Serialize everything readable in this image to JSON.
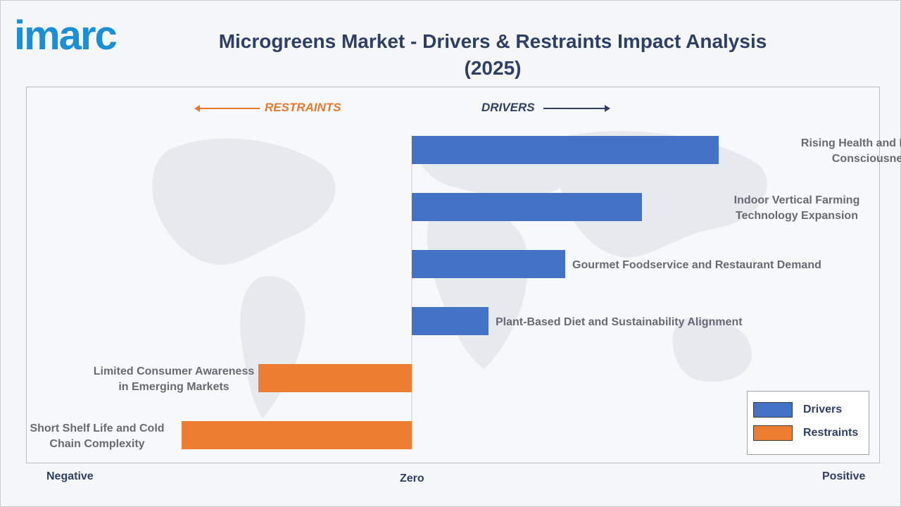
{
  "brand": {
    "logo_text": "imarc"
  },
  "title": "Microgreens Market - Drivers & Restraints Impact Analysis (2025)",
  "direction_labels": {
    "restraints": "RESTRAINTS",
    "drivers": "DRIVERS"
  },
  "axis_labels": {
    "negative": "Negative",
    "zero": "Zero",
    "positive": "Positive"
  },
  "colors": {
    "drivers": "#4472c4",
    "restraints": "#ed7d31",
    "title": "#2e3f66",
    "logo": "#1a8fd6"
  },
  "legend": [
    {
      "label": "Drivers",
      "color": "#4472c4"
    },
    {
      "label": "Restraints",
      "color": "#ed7d31"
    }
  ],
  "chart_data": {
    "type": "bar",
    "orientation": "horizontal",
    "xlim": [
      -1,
      1
    ],
    "categories": [
      "Rising Health and Nutrition Consciousness",
      "Indoor Vertical Farming Technology Expansion",
      "Gourmet Foodservice and Restaurant Demand",
      "Plant-Based Diet and Sustainability Alignment",
      "Limited Consumer Awareness in Emerging Markets",
      "Short Shelf Life and Cold Chain Complexity"
    ],
    "series": [
      {
        "name": "Drivers",
        "values": [
          0.8,
          0.6,
          0.4,
          0.2,
          null,
          null
        ]
      },
      {
        "name": "Restraints",
        "values": [
          null,
          null,
          null,
          null,
          -0.4,
          -0.6
        ]
      }
    ],
    "legend_position": "bottom-right",
    "grid": false
  }
}
